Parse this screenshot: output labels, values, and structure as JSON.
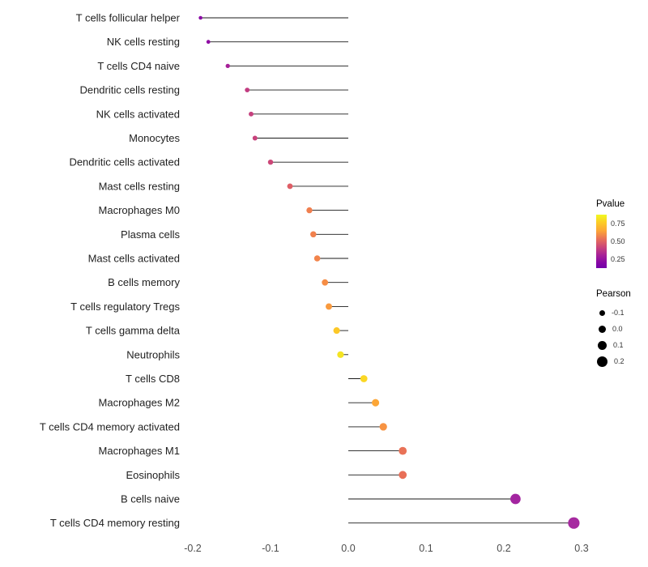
{
  "chart_data": {
    "type": "lollipop",
    "orientation": "horizontal",
    "title": "",
    "xlabel": "",
    "ylabel": "",
    "grid": false,
    "xlim": [
      -0.25,
      0.33
    ],
    "x_ticks": {
      "values": [
        -0.2,
        -0.1,
        0.0,
        0.1,
        0.2,
        0.3
      ],
      "labels": [
        "-0.2",
        "-0.1",
        "0.0",
        "0.1",
        "0.2",
        "0.3"
      ]
    },
    "size_encoding": "Pearson",
    "color_encoding": "Pvalue",
    "rows": [
      {
        "label": "T cells follicular helper",
        "pearson": -0.19,
        "pvalue": 0.25,
        "color": "#8B0AA5"
      },
      {
        "label": "NK cells resting",
        "pearson": -0.18,
        "pvalue": 0.27,
        "color": "#8F0DA4"
      },
      {
        "label": "T cells CD4 naive",
        "pearson": -0.155,
        "pvalue": 0.32,
        "color": "#A62098"
      },
      {
        "label": "Dendritic cells resting",
        "pearson": -0.13,
        "pvalue": 0.45,
        "color": "#C23C81"
      },
      {
        "label": "NK cells activated",
        "pearson": -0.125,
        "pvalue": 0.46,
        "color": "#C5407E"
      },
      {
        "label": "Monocytes",
        "pearson": -0.12,
        "pvalue": 0.47,
        "color": "#C8427C"
      },
      {
        "label": "Dendritic cells activated",
        "pearson": -0.1,
        "pvalue": 0.5,
        "color": "#CC4778"
      },
      {
        "label": "Mast cells resting",
        "pearson": -0.075,
        "pvalue": 0.58,
        "color": "#DF5E66"
      },
      {
        "label": "Macrophages M0",
        "pearson": -0.05,
        "pvalue": 0.68,
        "color": "#F07F4F"
      },
      {
        "label": "Plasma cells",
        "pearson": -0.045,
        "pvalue": 0.69,
        "color": "#F1814D"
      },
      {
        "label": "Mast cells activated",
        "pearson": -0.04,
        "pvalue": 0.7,
        "color": "#F2844B"
      },
      {
        "label": "B cells memory",
        "pearson": -0.03,
        "pvalue": 0.73,
        "color": "#F68D45"
      },
      {
        "label": "T cells regulatory Tregs",
        "pearson": -0.025,
        "pvalue": 0.76,
        "color": "#F99A3E"
      },
      {
        "label": "T cells gamma delta",
        "pearson": -0.015,
        "pvalue": 0.87,
        "color": "#FCC827"
      },
      {
        "label": "Neutrophils",
        "pearson": -0.01,
        "pvalue": 0.93,
        "color": "#F4E423"
      },
      {
        "label": "T cells CD8",
        "pearson": 0.02,
        "pvalue": 0.9,
        "color": "#FBD724"
      },
      {
        "label": "Macrophages M2",
        "pearson": 0.035,
        "pvalue": 0.79,
        "color": "#FCA636"
      },
      {
        "label": "T cells CD4 memory activated",
        "pearson": 0.045,
        "pvalue": 0.74,
        "color": "#F79342"
      },
      {
        "label": "Macrophages M1",
        "pearson": 0.07,
        "pvalue": 0.63,
        "color": "#E97257"
      },
      {
        "label": "Eosinophils",
        "pearson": 0.07,
        "pvalue": 0.62,
        "color": "#E86F58"
      },
      {
        "label": "B cells naive",
        "pearson": 0.215,
        "pvalue": 0.12,
        "color": "#A325A0"
      },
      {
        "label": "T cells CD4 memory resting",
        "pearson": 0.29,
        "pvalue": 0.11,
        "color": "#A62AA0"
      }
    ],
    "legend": {
      "pvalue": {
        "title": "Pvalue",
        "ticks": [
          "0.75",
          "0.50",
          "0.25"
        ],
        "gradient_high": "#F0F921",
        "gradient_low": "#7301A8"
      },
      "pearson": {
        "title": "Pearson",
        "items": [
          {
            "label": "-0.1",
            "value": -0.1
          },
          {
            "label": "0.0",
            "value": 0.0
          },
          {
            "label": "0.1",
            "value": 0.1
          },
          {
            "label": "0.2",
            "value": 0.2
          }
        ]
      }
    }
  }
}
